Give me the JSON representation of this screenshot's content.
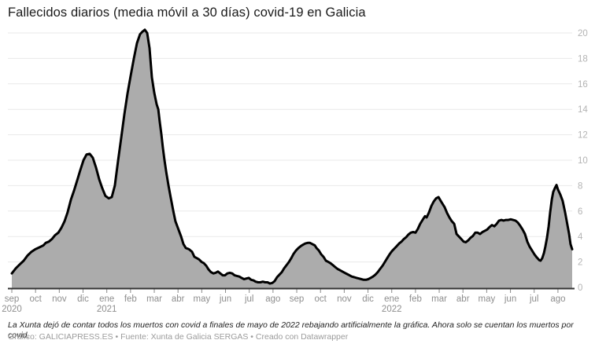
{
  "title": "Fallecidos diarios (media móvil a 30 días) covid-19 en Galicia",
  "footer": {
    "note": "La Xunta dejó de contar todos los muertos con covid a finales de mayo de 2022 rebajando artificialmente la gráfica. Ahora solo se cuentan los muertos por covid.",
    "credits": "Gráfico: GALICIAPRESS.ES • Fuente: Xunta de Galicia SERGAS • Creado con Datawrapper"
  },
  "colors": {
    "area": "#acacac",
    "line": "#000000",
    "grid": "#e9e9e9",
    "axis": "#333333",
    "tick": "#8a8a8a",
    "xlabel": "#8e8e8e",
    "ylabel": "#b4b4b4",
    "background": "#ffffff"
  },
  "chart_data": {
    "type": "area",
    "title": "Fallecidos diarios (media móvil a 30 días) covid-19 en Galicia",
    "xlabel": "",
    "ylabel": "",
    "grid": true,
    "x_axis": {
      "unit": "months since sep 2020",
      "ticks": [
        {
          "label": "sep",
          "year": "2020"
        },
        {
          "label": "oct"
        },
        {
          "label": "nov"
        },
        {
          "label": "dic"
        },
        {
          "label": "ene",
          "year": "2021"
        },
        {
          "label": "feb"
        },
        {
          "label": "mar"
        },
        {
          "label": "abr"
        },
        {
          "label": "may"
        },
        {
          "label": "jun"
        },
        {
          "label": "jul"
        },
        {
          "label": "ago"
        },
        {
          "label": "sep"
        },
        {
          "label": "oct"
        },
        {
          "label": "nov"
        },
        {
          "label": "dic"
        },
        {
          "label": "ene",
          "year": "2022"
        },
        {
          "label": "feb"
        },
        {
          "label": "mar"
        },
        {
          "label": "abr"
        },
        {
          "label": "may"
        },
        {
          "label": "jun"
        },
        {
          "label": "jul"
        },
        {
          "label": "ago"
        }
      ]
    },
    "y_axis": {
      "ticks": [
        0,
        2,
        4,
        6,
        8,
        10,
        12,
        14,
        16,
        18,
        20
      ],
      "range": [
        0,
        20
      ],
      "position": "right"
    },
    "series": [
      {
        "name": "Fallecidos diarios (media móvil a 30 días)",
        "points": [
          [
            0,
            1.1
          ],
          [
            0.17,
            1.5
          ],
          [
            0.33,
            1.8
          ],
          [
            0.5,
            2.1
          ],
          [
            0.66,
            2.5
          ],
          [
            0.83,
            2.8
          ],
          [
            0.99,
            3.0
          ],
          [
            1.16,
            3.15
          ],
          [
            1.33,
            3.3
          ],
          [
            1.43,
            3.5
          ],
          [
            1.56,
            3.6
          ],
          [
            1.69,
            3.8
          ],
          [
            1.82,
            4.1
          ],
          [
            1.96,
            4.3
          ],
          [
            2.09,
            4.7
          ],
          [
            2.22,
            5.2
          ],
          [
            2.35,
            5.9
          ],
          [
            2.49,
            6.9
          ],
          [
            2.62,
            7.6
          ],
          [
            2.75,
            8.4
          ],
          [
            2.88,
            9.2
          ],
          [
            3.02,
            10.0
          ],
          [
            3.15,
            10.45
          ],
          [
            3.28,
            10.5
          ],
          [
            3.41,
            10.2
          ],
          [
            3.55,
            9.4
          ],
          [
            3.68,
            8.5
          ],
          [
            3.81,
            7.8
          ],
          [
            3.94,
            7.2
          ],
          [
            4.08,
            7.0
          ],
          [
            4.21,
            7.1
          ],
          [
            4.34,
            8.0
          ],
          [
            4.47,
            9.9
          ],
          [
            4.61,
            11.8
          ],
          [
            4.74,
            13.6
          ],
          [
            4.87,
            15.2
          ],
          [
            5.0,
            16.6
          ],
          [
            5.14,
            18.0
          ],
          [
            5.27,
            19.2
          ],
          [
            5.4,
            19.9
          ],
          [
            5.5,
            20.1
          ],
          [
            5.6,
            20.25
          ],
          [
            5.7,
            20.0
          ],
          [
            5.8,
            18.8
          ],
          [
            5.9,
            16.5
          ],
          [
            6.0,
            15.3
          ],
          [
            6.1,
            14.4
          ],
          [
            6.17,
            14.0
          ],
          [
            6.23,
            13.0
          ],
          [
            6.3,
            12.0
          ],
          [
            6.36,
            11.0
          ],
          [
            6.43,
            10.0
          ],
          [
            6.51,
            9.0
          ],
          [
            6.6,
            8.0
          ],
          [
            6.7,
            7.0
          ],
          [
            6.8,
            6.0
          ],
          [
            6.89,
            5.2
          ],
          [
            6.99,
            4.7
          ],
          [
            7.13,
            4.0
          ],
          [
            7.23,
            3.4
          ],
          [
            7.33,
            3.1
          ],
          [
            7.46,
            3.0
          ],
          [
            7.59,
            2.8
          ],
          [
            7.69,
            2.4
          ],
          [
            7.79,
            2.3
          ],
          [
            7.89,
            2.2
          ],
          [
            7.99,
            2.0
          ],
          [
            8.09,
            1.9
          ],
          [
            8.19,
            1.7
          ],
          [
            8.29,
            1.4
          ],
          [
            8.39,
            1.2
          ],
          [
            8.49,
            1.1
          ],
          [
            8.58,
            1.15
          ],
          [
            8.68,
            1.25
          ],
          [
            8.78,
            1.1
          ],
          [
            8.88,
            0.95
          ],
          [
            8.98,
            0.95
          ],
          [
            9.08,
            1.1
          ],
          [
            9.18,
            1.15
          ],
          [
            9.28,
            1.1
          ],
          [
            9.38,
            0.95
          ],
          [
            9.48,
            0.9
          ],
          [
            9.58,
            0.85
          ],
          [
            9.68,
            0.75
          ],
          [
            9.78,
            0.65
          ],
          [
            9.88,
            0.7
          ],
          [
            9.98,
            0.75
          ],
          [
            10.08,
            0.6
          ],
          [
            10.18,
            0.55
          ],
          [
            10.27,
            0.45
          ],
          [
            10.37,
            0.4
          ],
          [
            10.47,
            0.4
          ],
          [
            10.57,
            0.45
          ],
          [
            10.67,
            0.4
          ],
          [
            10.77,
            0.4
          ],
          [
            10.87,
            0.3
          ],
          [
            10.97,
            0.35
          ],
          [
            11.07,
            0.5
          ],
          [
            11.17,
            0.8
          ],
          [
            11.27,
            1.0
          ],
          [
            11.37,
            1.2
          ],
          [
            11.47,
            1.5
          ],
          [
            11.57,
            1.75
          ],
          [
            11.67,
            2.0
          ],
          [
            11.77,
            2.3
          ],
          [
            11.87,
            2.65
          ],
          [
            11.97,
            2.9
          ],
          [
            12.07,
            3.1
          ],
          [
            12.17,
            3.25
          ],
          [
            12.26,
            3.35
          ],
          [
            12.36,
            3.45
          ],
          [
            12.46,
            3.5
          ],
          [
            12.56,
            3.5
          ],
          [
            12.66,
            3.4
          ],
          [
            12.76,
            3.3
          ],
          [
            12.83,
            3.1
          ],
          [
            12.93,
            2.9
          ],
          [
            13.03,
            2.6
          ],
          [
            13.13,
            2.4
          ],
          [
            13.23,
            2.1
          ],
          [
            13.33,
            2.0
          ],
          [
            13.42,
            1.9
          ],
          [
            13.52,
            1.75
          ],
          [
            13.62,
            1.6
          ],
          [
            13.72,
            1.45
          ],
          [
            13.82,
            1.35
          ],
          [
            13.92,
            1.25
          ],
          [
            14.02,
            1.15
          ],
          [
            14.12,
            1.05
          ],
          [
            14.22,
            0.95
          ],
          [
            14.32,
            0.85
          ],
          [
            14.42,
            0.8
          ],
          [
            14.52,
            0.75
          ],
          [
            14.62,
            0.7
          ],
          [
            14.72,
            0.65
          ],
          [
            14.82,
            0.6
          ],
          [
            14.92,
            0.6
          ],
          [
            15.01,
            0.65
          ],
          [
            15.11,
            0.75
          ],
          [
            15.21,
            0.85
          ],
          [
            15.31,
            1.0
          ],
          [
            15.41,
            1.2
          ],
          [
            15.51,
            1.45
          ],
          [
            15.61,
            1.7
          ],
          [
            15.71,
            2.0
          ],
          [
            15.81,
            2.3
          ],
          [
            15.91,
            2.6
          ],
          [
            16.01,
            2.85
          ],
          [
            16.11,
            3.05
          ],
          [
            16.21,
            3.25
          ],
          [
            16.31,
            3.45
          ],
          [
            16.41,
            3.6
          ],
          [
            16.51,
            3.8
          ],
          [
            16.61,
            3.95
          ],
          [
            16.7,
            4.15
          ],
          [
            16.8,
            4.3
          ],
          [
            16.9,
            4.35
          ],
          [
            17.0,
            4.3
          ],
          [
            17.1,
            4.6
          ],
          [
            17.2,
            5.0
          ],
          [
            17.3,
            5.3
          ],
          [
            17.4,
            5.6
          ],
          [
            17.47,
            5.5
          ],
          [
            17.57,
            5.9
          ],
          [
            17.67,
            6.4
          ],
          [
            17.77,
            6.75
          ],
          [
            17.87,
            7.0
          ],
          [
            17.97,
            7.1
          ],
          [
            18.03,
            6.9
          ],
          [
            18.13,
            6.6
          ],
          [
            18.23,
            6.3
          ],
          [
            18.33,
            5.85
          ],
          [
            18.43,
            5.5
          ],
          [
            18.53,
            5.2
          ],
          [
            18.63,
            5.0
          ],
          [
            18.73,
            4.2
          ],
          [
            18.83,
            4.0
          ],
          [
            18.93,
            3.8
          ],
          [
            19.03,
            3.6
          ],
          [
            19.12,
            3.55
          ],
          [
            19.22,
            3.7
          ],
          [
            19.32,
            3.9
          ],
          [
            19.42,
            4.05
          ],
          [
            19.52,
            4.3
          ],
          [
            19.62,
            4.3
          ],
          [
            19.72,
            4.2
          ],
          [
            19.82,
            4.35
          ],
          [
            19.92,
            4.45
          ],
          [
            20.02,
            4.55
          ],
          [
            20.12,
            4.75
          ],
          [
            20.22,
            4.9
          ],
          [
            20.32,
            4.8
          ],
          [
            20.42,
            5.0
          ],
          [
            20.52,
            5.25
          ],
          [
            20.62,
            5.3
          ],
          [
            20.71,
            5.25
          ],
          [
            20.81,
            5.3
          ],
          [
            20.91,
            5.3
          ],
          [
            21.01,
            5.35
          ],
          [
            21.11,
            5.3
          ],
          [
            21.21,
            5.25
          ],
          [
            21.31,
            5.1
          ],
          [
            21.41,
            4.85
          ],
          [
            21.51,
            4.55
          ],
          [
            21.61,
            4.2
          ],
          [
            21.71,
            3.6
          ],
          [
            21.81,
            3.2
          ],
          [
            21.91,
            2.9
          ],
          [
            22.01,
            2.6
          ],
          [
            22.11,
            2.35
          ],
          [
            22.21,
            2.15
          ],
          [
            22.27,
            2.1
          ],
          [
            22.34,
            2.3
          ],
          [
            22.41,
            2.7
          ],
          [
            22.47,
            3.2
          ],
          [
            22.54,
            3.9
          ],
          [
            22.61,
            4.8
          ],
          [
            22.67,
            5.9
          ],
          [
            22.74,
            6.9
          ],
          [
            22.8,
            7.5
          ],
          [
            22.87,
            7.8
          ],
          [
            22.94,
            8.05
          ],
          [
            23.0,
            7.7
          ],
          [
            23.1,
            7.3
          ],
          [
            23.2,
            6.8
          ],
          [
            23.3,
            5.9
          ],
          [
            23.4,
            4.9
          ],
          [
            23.47,
            4.2
          ],
          [
            23.53,
            3.4
          ],
          [
            23.6,
            3.0
          ]
        ]
      }
    ]
  }
}
